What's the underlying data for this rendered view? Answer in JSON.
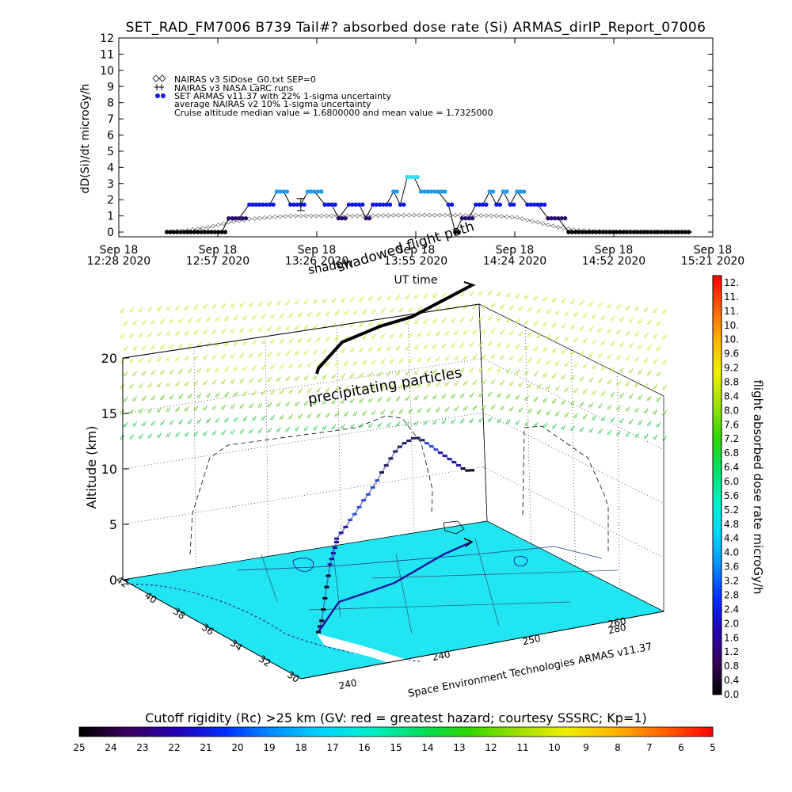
{
  "colors": {
    "ground": "#22e5f2",
    "rainbow": [
      "#000000",
      "#3a005e",
      "#2400b4",
      "#0030ff",
      "#0090ff",
      "#00d8ff",
      "#00f0c8",
      "#00e060",
      "#30d800",
      "#a0e000",
      "#f0f000",
      "#ffb400",
      "#ff6000",
      "#ff0000"
    ],
    "armas_dark": "#2a0a6a",
    "armas_blue": "#0e18e0",
    "armas_cyan": "#30dcf0"
  },
  "chart_data": [
    {
      "type": "line",
      "title": "SET_RAD_FM7006  B739 Tail#? absorbed dose rate (Si) ARMAS_dirIP_Report_07006",
      "xlabel": "UT time",
      "ylabel": "dD(Si)/dt microGy/h",
      "ylim": [
        0,
        12
      ],
      "y_ticks": [
        "0",
        "1",
        "2",
        "3",
        "4",
        "5",
        "6",
        "7",
        "8",
        "9",
        "10",
        "11",
        "12"
      ],
      "x_tick_lines1": [
        "Sep 18",
        "Sep 18",
        "Sep 18",
        "Sep 18",
        "Sep 18",
        "Sep 18",
        "Sep 18"
      ],
      "x_tick_lines2": [
        "12:28 2020",
        "12:57 2020",
        "13:26 2020",
        "13:55 2020",
        "14:24 2020",
        "14:52 2020",
        "15:21 2020"
      ],
      "legend": [
        "NAIRAS v3 SiDose_G0.txt SEP=0",
        "NAIRAS v3 NASA LaRC runs",
        "SET ARMAS v11.37 with 22% 1-sigma uncertainty",
        "average NAIRAS v2 10% 1-sigma uncertainty",
        "Cruise altitude median value = 1.6800000 and mean value = 1.7325000"
      ],
      "overlay_labels": [
        "shadowed flight path",
        "shadow"
      ],
      "x_minutes_range": [
        0,
        173
      ],
      "series": [
        {
          "name": "NAIRAS v3 SiDose_G0.txt SEP=0",
          "x": [
            14,
            20,
            26,
            32,
            38,
            44,
            50,
            56,
            62,
            68,
            74,
            80,
            86,
            92,
            98,
            104,
            110,
            116,
            122,
            128,
            134,
            140,
            146,
            152,
            158,
            164
          ],
          "values": [
            0.02,
            0.1,
            0.3,
            0.6,
            0.8,
            0.92,
            1.0,
            1.0,
            1.0,
            1.0,
            1.02,
            1.03,
            1.05,
            1.05,
            1.04,
            1.03,
            1.0,
            0.9,
            0.6,
            0.3,
            0.1,
            0.05,
            0.03,
            0.02,
            0.01,
            0.01
          ]
        },
        {
          "name": "SET ARMAS v11.37 with 22% 1-sigma uncertainty",
          "x": [
            14,
            18,
            22,
            26,
            30,
            32,
            35,
            38,
            41,
            44,
            46,
            48,
            50,
            52,
            53,
            55,
            57,
            60,
            62,
            64,
            67,
            70,
            72,
            74,
            76,
            78,
            80,
            82,
            84,
            86,
            88,
            90,
            93,
            96,
            98,
            100,
            102,
            104,
            106,
            108,
            110,
            112,
            114,
            116,
            119,
            122,
            125,
            128,
            131,
            134,
            137,
            140,
            143,
            146,
            149,
            152,
            155,
            158,
            161,
            164,
            167
          ],
          "values": [
            0.0,
            0.0,
            0.0,
            0.0,
            0.0,
            0.85,
            0.85,
            1.7,
            1.7,
            1.7,
            2.5,
            2.5,
            1.7,
            1.7,
            1.7,
            2.5,
            2.5,
            1.7,
            1.7,
            0.85,
            1.7,
            1.7,
            0.85,
            1.7,
            1.7,
            1.7,
            2.5,
            1.7,
            3.4,
            3.4,
            2.5,
            2.5,
            2.5,
            1.7,
            0.0,
            0.85,
            0.85,
            1.7,
            1.7,
            2.5,
            1.7,
            2.5,
            1.7,
            2.5,
            1.7,
            1.7,
            0.85,
            0.85,
            0.0,
            0.0,
            0.0,
            0.0,
            0.0,
            0.0,
            0.0,
            0.0,
            0.0,
            0.0,
            0.0,
            0.0,
            0.0
          ]
        }
      ],
      "error_bar": {
        "x": 53,
        "y": 1.7,
        "err": 0.37
      }
    },
    {
      "type": "scatter",
      "ylabel": "Altitude (km)",
      "z_ticks": [
        "0",
        "5",
        "10",
        "15",
        "20"
      ],
      "zlim": [
        0,
        20
      ],
      "lat_ticks": [
        "42",
        "40",
        "38",
        "36",
        "34",
        "32",
        "30"
      ],
      "lon_ticks": [
        "240",
        "240",
        "250",
        "260",
        "280"
      ],
      "annotations": [
        "precipitating particles",
        "Space Environment Technologies ARMAS v11.37"
      ],
      "flight_altitude_km": [
        0,
        0.5,
        1,
        2,
        3,
        4,
        5,
        6,
        6.5,
        7,
        7.5,
        8,
        8.3,
        8.5,
        8.7,
        9,
        9.2,
        9.5,
        9.8,
        10,
        10.3,
        10.6,
        11,
        11.3,
        11.6,
        11.9,
        12,
        12,
        11.9,
        11.8,
        11.5,
        11,
        10.4,
        9.8,
        9.2,
        8.6,
        8,
        7.4,
        6.8,
        6.2,
        5.6,
        5.1,
        4.8
      ]
    }
  ],
  "dose_colorbar": {
    "label": "flight absorbed dose rate microGy/h",
    "ticks": [
      "0.0",
      "0.4",
      "0.8",
      "1.2",
      "1.6",
      "2.0",
      "2.4",
      "2.8",
      "3.2",
      "3.6",
      "4.0",
      "4.4",
      "4.8",
      "5.2",
      "5.6",
      "6.0",
      "6.4",
      "6.8",
      "7.2",
      "7.6",
      "8.0",
      "8.4",
      "8.8",
      "9.2",
      "9.6",
      "10.",
      "10.",
      "11.",
      "11.",
      "12."
    ]
  },
  "rigidity_colorbar": {
    "label": "Cutoff rigidity (Rc) >25 km (GV: red = greatest hazard; courtesy SSSRC; Kp=1)",
    "ticks": [
      "25",
      "24",
      "23",
      "22",
      "21",
      "20",
      "19",
      "18",
      "17",
      "16",
      "15",
      "14",
      "13",
      "12",
      "11",
      "10",
      "9",
      "8",
      "7",
      "6",
      "5"
    ]
  }
}
